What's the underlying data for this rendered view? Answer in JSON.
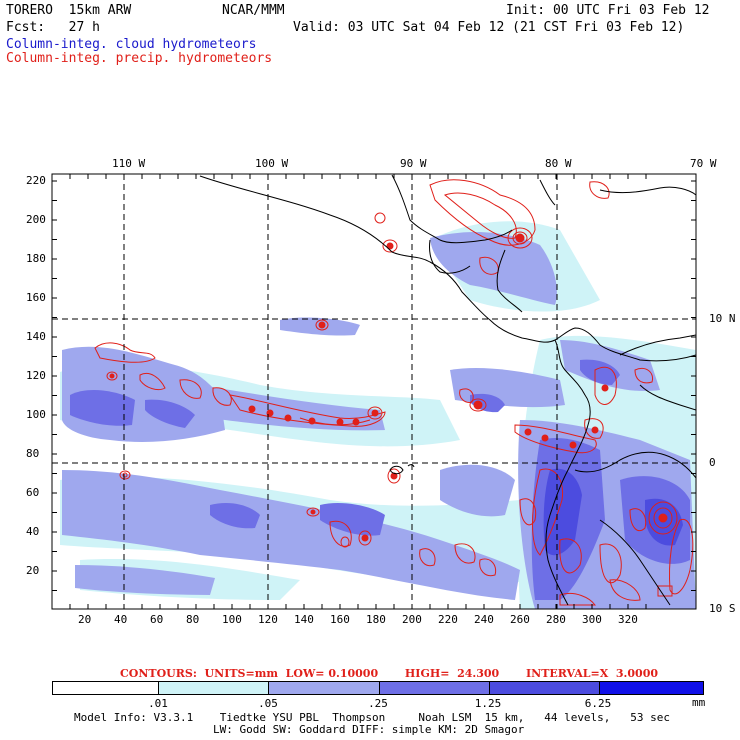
{
  "header": {
    "model": "TORERO  15km ARW",
    "org": "NCAR/MMM",
    "init": "Init: 00 UTC Fri 03 Feb 12",
    "fcst": "Fcst:   27 h",
    "valid": "Valid: 03 UTC Sat 04 Feb 12 (21 CST Fri 03 Feb 12)",
    "field1": "Column-integ. cloud hydrometeors",
    "field2": "Column-integ. precip. hydrometeors"
  },
  "colors": {
    "field1": "#1a1acc",
    "field2": "#e0201a",
    "ocean": "#ffffff",
    "cloud_light": "#cff3f7",
    "cloud_mid": "#9fa8ee",
    "cloud_dark": "#6e6fe6",
    "cloud_deep": "#4c4cdf",
    "precip": "#e0201a"
  },
  "lon_labels": [
    "110 W",
    "100 W",
    "90 W",
    "80 W",
    "70 W"
  ],
  "lat_labels": [
    "10 N",
    "0",
    "10 S"
  ],
  "y_ticks": [
    "220",
    "200",
    "180",
    "160",
    "140",
    "120",
    "100",
    "80",
    "60",
    "40",
    "20"
  ],
  "x_ticks": [
    "20",
    "40",
    "60",
    "80",
    "100",
    "120",
    "140",
    "160",
    "180",
    "200",
    "220",
    "240",
    "260",
    "280",
    "300",
    "320"
  ],
  "contour_info": "CONTOURS:  UNITS=mm  LOW= 0.10000       HIGH=  24.300       INTERVAL=X  3.0000",
  "colorbar": {
    "labels": [
      ".01",
      ".05",
      ".25",
      "1.25",
      "6.25"
    ],
    "units": "mm",
    "colors": [
      "#ffffff",
      "#cff3f7",
      "#9fa8ee",
      "#6e6fe6",
      "#4c4cdf",
      "#1010e8"
    ]
  },
  "footer": {
    "line1": "Model Info: V3.3.1    Tiedtke YSU PBL  Thompson     Noah LSM  15 km,   44 levels,   53 sec",
    "line2": "LW: Godd SW: Goddard DIFF: simple KM: 2D Smagor"
  }
}
